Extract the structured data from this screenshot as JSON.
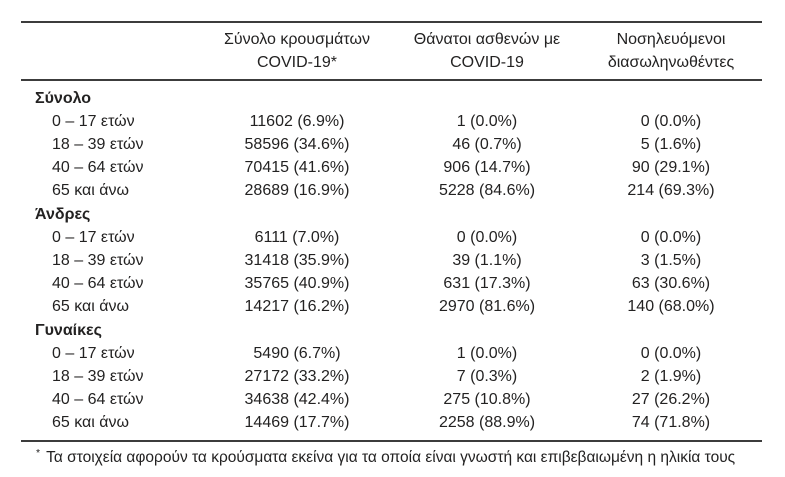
{
  "colors": {
    "background": "#ffffff",
    "text": "#232222",
    "rule": "#3c3c3c"
  },
  "table": {
    "columns": [
      {
        "key": "cases",
        "line1": "Σύνολο κρουσμάτων",
        "line2": "COVID-19*"
      },
      {
        "key": "deaths",
        "line1": "Θάνατοι ασθενών με",
        "line2": "COVID-19"
      },
      {
        "key": "intubated",
        "line1": "Νοσηλευόμενοι",
        "line2": "διασωληνωθέντες"
      }
    ],
    "sections": [
      {
        "label": "Σύνολο",
        "rows": [
          {
            "label": "0 – 17 ετών",
            "cases": "11602 (6.9%)",
            "deaths": "1 (0.0%)",
            "intubated": "0 (0.0%)"
          },
          {
            "label": "18 – 39 ετών",
            "cases": "58596 (34.6%)",
            "deaths": "46 (0.7%)",
            "intubated": "5 (1.6%)"
          },
          {
            "label": "40 – 64 ετών",
            "cases": "70415 (41.6%)",
            "deaths": "906 (14.7%)",
            "intubated": "90 (29.1%)"
          },
          {
            "label": "65 και άνω",
            "cases": "28689 (16.9%)",
            "deaths": "5228 (84.6%)",
            "intubated": "214 (69.3%)"
          }
        ]
      },
      {
        "label": "Άνδρες",
        "rows": [
          {
            "label": "0 – 17 ετών",
            "cases": "6111 (7.0%)",
            "deaths": "0 (0.0%)",
            "intubated": "0 (0.0%)"
          },
          {
            "label": "18 – 39 ετών",
            "cases": "31418 (35.9%)",
            "deaths": "39 (1.1%)",
            "intubated": "3 (1.5%)"
          },
          {
            "label": "40 – 64 ετών",
            "cases": "35765 (40.9%)",
            "deaths": "631 (17.3%)",
            "intubated": "63 (30.6%)"
          },
          {
            "label": "65 και άνω",
            "cases": "14217 (16.2%)",
            "deaths": "2970 (81.6%)",
            "intubated": "140 (68.0%)"
          }
        ]
      },
      {
        "label": "Γυναίκες",
        "rows": [
          {
            "label": "0 – 17 ετών",
            "cases": "5490 (6.7%)",
            "deaths": "1 (0.0%)",
            "intubated": "0 (0.0%)"
          },
          {
            "label": "18 – 39 ετών",
            "cases": "27172 (33.2%)",
            "deaths": "7 (0.3%)",
            "intubated": "2 (1.9%)"
          },
          {
            "label": "40 – 64 ετών",
            "cases": "34638 (42.4%)",
            "deaths": "275 (10.8%)",
            "intubated": "27 (26.2%)"
          },
          {
            "label": "65 και άνω",
            "cases": "14469 (17.7%)",
            "deaths": "2258 (88.9%)",
            "intubated": "74 (71.8%)"
          }
        ]
      }
    ],
    "footnote": {
      "marker": "*",
      "text": "Τα στοιχεία αφορούν τα κρούσματα εκείνα για τα οποία είναι γνωστή και επιβεβαιωμένη η ηλικία τους"
    }
  }
}
